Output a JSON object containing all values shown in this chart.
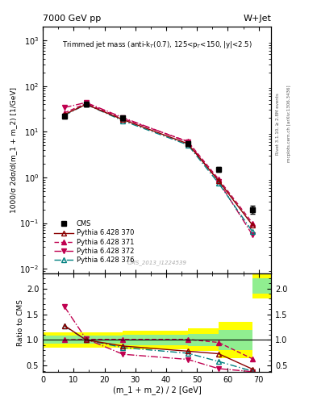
{
  "title_top": "7000 GeV pp",
  "title_right": "W+Jet",
  "annotation": "Trimmed jet mass (anti-k$_T$(0.7), 125<p$_T$<150, |y|<2.5)",
  "watermark": "CMS_2013_I1224539",
  "ylabel_main": "1000/σ 2dσ/d(m_1 + m_2) [1/GeV]",
  "ylabel_ratio": "Ratio to CMS",
  "xlabel": "(m_1 + m_2) / 2 [GeV]",
  "xlim": [
    0,
    74
  ],
  "ylim_main": [
    0.008,
    2000
  ],
  "ylim_ratio": [
    0.38,
    2.3
  ],
  "cms_x": [
    7,
    14,
    26,
    47,
    57,
    68
  ],
  "cms_y": [
    22,
    40,
    20,
    5.5,
    1.5,
    0.2
  ],
  "cms_yerr": [
    2.5,
    3.5,
    1.8,
    0.55,
    0.18,
    0.04
  ],
  "py370_x": [
    7,
    14,
    26,
    47,
    57,
    68
  ],
  "py370_y": [
    24,
    40,
    18.5,
    5.5,
    0.85,
    0.09
  ],
  "py371_x": [
    7,
    14,
    26,
    47,
    57,
    68
  ],
  "py371_y": [
    26,
    42,
    19.5,
    6.2,
    0.92,
    0.1
  ],
  "py372_x": [
    7,
    14,
    26,
    47,
    57,
    68
  ],
  "py372_y": [
    34,
    44,
    20.5,
    6.0,
    0.82,
    0.055
  ],
  "py376_x": [
    7,
    14,
    26,
    47,
    57,
    68
  ],
  "py376_y": [
    23,
    40,
    17.5,
    5.2,
    0.75,
    0.065
  ],
  "ratio370_x": [
    7,
    14,
    26,
    47,
    57,
    68
  ],
  "ratio370_y": [
    1.28,
    1.0,
    0.88,
    0.78,
    0.73,
    0.43
  ],
  "ratio371_x": [
    7,
    14,
    26,
    47,
    57,
    68
  ],
  "ratio371_y": [
    1.0,
    1.01,
    1.01,
    1.01,
    0.95,
    0.63
  ],
  "ratio372_x": [
    7,
    14,
    26,
    47,
    57,
    68
  ],
  "ratio372_y": [
    1.65,
    1.02,
    0.72,
    0.62,
    0.44,
    0.38
  ],
  "ratio376_x": [
    7,
    14,
    26,
    47,
    57,
    68
  ],
  "ratio376_y": [
    1.27,
    1.0,
    0.85,
    0.74,
    0.58,
    0.39
  ],
  "color_370": "#8b0000",
  "color_371": "#c00050",
  "color_372": "#c00050",
  "color_376": "#008080",
  "rivet_text": "Rivet 3.1.10, ≥ 2.8M events",
  "mcplots_text": "mcplots.cern.ch [arXiv:1306.3436]"
}
